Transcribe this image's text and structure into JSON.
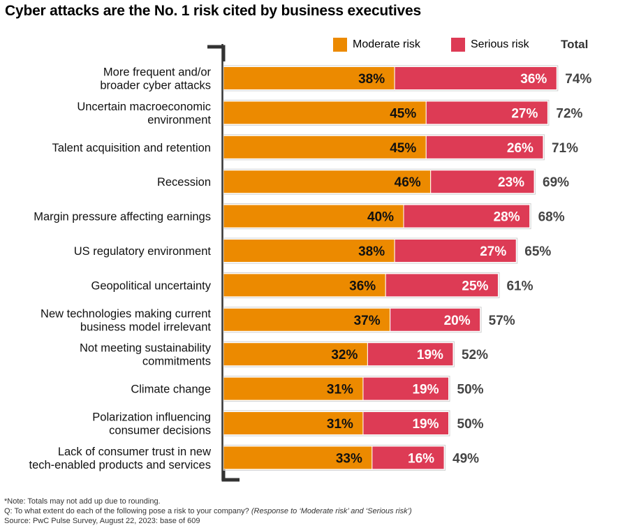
{
  "title": "Cyber attacks are the No. 1 risk cited by business executives",
  "legend": {
    "moderate_label": "Moderate risk",
    "serious_label": "Serious risk",
    "total_label": "Total"
  },
  "colors": {
    "moderate": "#ec8a00",
    "serious": "#dd3b55",
    "total_text": "#444444",
    "axis": "#333333"
  },
  "chart_data": {
    "type": "bar",
    "orientation": "horizontal",
    "stacked": true,
    "categories": [
      [
        "More frequent and/or",
        "broader cyber attacks"
      ],
      [
        "Uncertain macroeconomic",
        "environment"
      ],
      [
        "Talent acquisition and retention"
      ],
      [
        "Recession"
      ],
      [
        "Margin pressure affecting earnings"
      ],
      [
        "US regulatory environment"
      ],
      [
        "Geopolitical uncertainty"
      ],
      [
        "New technologies making current",
        "business model irrelevant"
      ],
      [
        "Not meeting sustainability",
        "commitments"
      ],
      [
        "Climate change"
      ],
      [
        "Polarization influencing",
        "consumer decisions"
      ],
      [
        "Lack of consumer trust in new",
        "tech-enabled products and services"
      ]
    ],
    "series": [
      {
        "name": "Moderate risk",
        "values": [
          38,
          45,
          45,
          46,
          40,
          38,
          36,
          37,
          32,
          31,
          31,
          33
        ]
      },
      {
        "name": "Serious risk",
        "values": [
          36,
          27,
          26,
          23,
          28,
          27,
          25,
          20,
          19,
          19,
          19,
          16
        ]
      }
    ],
    "totals": [
      74,
      72,
      71,
      69,
      68,
      65,
      61,
      57,
      52,
      50,
      50,
      49
    ],
    "value_suffix": "%",
    "legend_position": "top-right",
    "grid": false
  },
  "footnotes": {
    "note": "*Note: Totals may not add up due to rounding.",
    "question_prefix": "Q: To what extent do each of the following pose a risk to your company?",
    "question_suffix": "(Response to ‘Moderate risk’ and ‘Serious risk’)",
    "source": "Source: PwC Pulse Survey, August 22, 2023: base of 609"
  }
}
